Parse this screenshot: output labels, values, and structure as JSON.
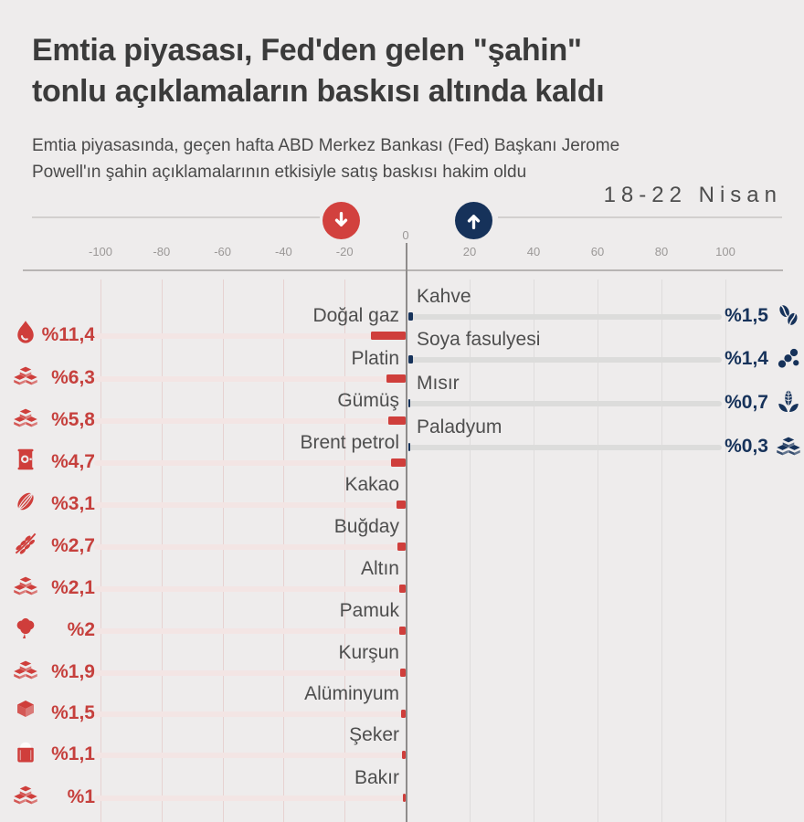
{
  "title": "Emtia piyasası, Fed'den gelen \"şahin\" tonlu açıklamaların baskısı altında kaldı",
  "title_lines": [
    "Emtia piyasası, Fed'den gelen \"şahin\"",
    "tonlu açıklamaların baskısı altında kaldı"
  ],
  "subtitle": "Emtia piyasasında, geçen hafta ABD Merkez Bankası (Fed) Başkanı Jerome Powell'ın şahin açıklamalarının etkisiyle satış baskısı hakim oldu",
  "subtitle_lines": [
    "Emtia piyasasında, geçen hafta ABD Merkez Bankası (Fed) Başkanı Jerome",
    "Powell'ın şahin açıklamalarının etkisiyle satış baskısı hakim oldu"
  ],
  "period": "18-22 Nisan",
  "colors": {
    "decrease": "#cf3e3b",
    "decrease_track": "#f3e5e4",
    "increase": "#16325a",
    "increase_track": "#dcdcdb",
    "background": "#eeecec",
    "title_text": "#3b3b3b",
    "axis_text": "#9b9897"
  },
  "chart_data": {
    "type": "bar",
    "orientation": "horizontal-diverging",
    "unit": "% weekly change",
    "title": "Emtia piyasası haftalık değişim",
    "period": "18-22 Nisan",
    "axis_range": [
      -100,
      100
    ],
    "axis_ticks": [
      -100,
      -80,
      -60,
      -40,
      -20,
      0,
      20,
      40,
      60,
      80,
      100
    ],
    "axis_tick_labels": [
      "-100",
      "-80",
      "-60",
      "-40",
      "-20",
      "0",
      "20",
      "40",
      "60",
      "80",
      "100"
    ],
    "grid": true,
    "decreases": [
      {
        "label": "Doğal gaz",
        "value": -11.4,
        "value_label": "%11,4",
        "icon": "flame-icon"
      },
      {
        "label": "Platin",
        "value": -6.3,
        "value_label": "%6,3",
        "icon": "platinum-ingots-icon"
      },
      {
        "label": "Gümüş",
        "value": -5.8,
        "value_label": "%5,8",
        "icon": "silver-ingots-icon"
      },
      {
        "label": "Brent petrol",
        "value": -4.7,
        "value_label": "%4,7",
        "icon": "oil-barrel-icon"
      },
      {
        "label": "Kakao",
        "value": -3.1,
        "value_label": "%3,1",
        "icon": "cocoa-pod-icon"
      },
      {
        "label": "Buğday",
        "value": -2.7,
        "value_label": "%2,7",
        "icon": "wheat-icon"
      },
      {
        "label": "Altın",
        "value": -2.1,
        "value_label": "%2,1",
        "icon": "gold-bars-icon"
      },
      {
        "label": "Pamuk",
        "value": -2,
        "value_label": "%2",
        "icon": "cotton-icon"
      },
      {
        "label": "Kurşun",
        "value": -1.9,
        "value_label": "%1,9",
        "icon": "lead-ingots-icon"
      },
      {
        "label": "Alüminyum",
        "value": -1.5,
        "value_label": "%1,5",
        "icon": "aluminum-cube-icon"
      },
      {
        "label": "Şeker",
        "value": -1.1,
        "value_label": "%1,1",
        "icon": "sugar-sack-icon"
      },
      {
        "label": "Bakır",
        "value": -1,
        "value_label": "%1",
        "icon": "copper-ingots-icon"
      }
    ],
    "increases": [
      {
        "label": "Kahve",
        "value": 1.5,
        "value_label": "%1,5",
        "icon": "coffee-beans-icon"
      },
      {
        "label": "Soya fasulyesi",
        "value": 1.4,
        "value_label": "%1,4",
        "icon": "soybean-icon"
      },
      {
        "label": "Mısır",
        "value": 0.7,
        "value_label": "%0,7",
        "icon": "corn-icon"
      },
      {
        "label": "Paladyum",
        "value": 0.3,
        "value_label": "%0,3",
        "icon": "palladium-ingots-icon"
      }
    ]
  }
}
